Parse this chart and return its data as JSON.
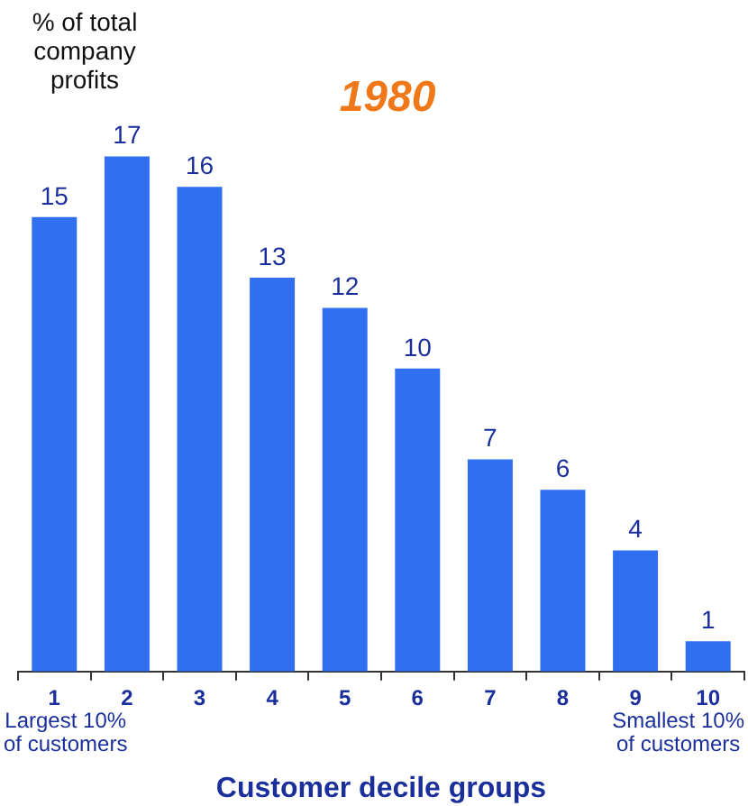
{
  "chart_data": {
    "type": "bar",
    "title": "1980",
    "ylabel": "% of total company profits",
    "xlabel": "Customer decile groups",
    "categories": [
      "1",
      "2",
      "3",
      "4",
      "5",
      "6",
      "7",
      "8",
      "9",
      "10"
    ],
    "values": [
      15,
      17,
      16,
      13,
      12,
      10,
      7,
      6,
      4,
      1
    ],
    "color": "#2f6ff0",
    "data_labels": true,
    "tick_labels": "x",
    "grid": false,
    "legend": false,
    "annotations": [
      "Largest 10%\nof customers",
      "Smallest 10%\nof customers"
    ]
  }
}
